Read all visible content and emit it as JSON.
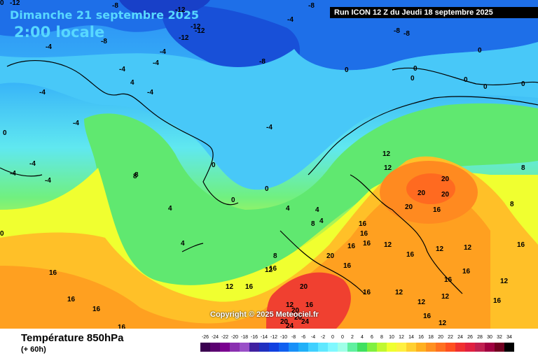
{
  "header": {
    "title": "Dimanche 21 septembre 2025",
    "subtitle": "2:00 locale",
    "run_info": "Run ICON 12 Z du Jeudi 18 septembre 2025"
  },
  "copyright": "Copyright © 2025 Meteociel.fr",
  "footer": {
    "variable_name": "Température 850hPa",
    "lead_time": "(+ 60h)"
  },
  "legend": {
    "ticks": [
      "-26",
      "-24",
      "-22",
      "-20",
      "-18",
      "-16",
      "-14",
      "-12",
      "-10",
      "-8",
      "-6",
      "-4",
      "-2",
      "0",
      "0",
      "2",
      "4",
      "6",
      "8",
      "10",
      "12",
      "14",
      "16",
      "18",
      "20",
      "22",
      "24",
      "26",
      "28",
      "30",
      "32",
      "34"
    ],
    "colors": [
      "#3a0050",
      "#5a0070",
      "#7a0090",
      "#8a30b0",
      "#9a50c8",
      "#4020a0",
      "#2030c0",
      "#1040e0",
      "#1060f0",
      "#1890f8",
      "#20b0f8",
      "#40d0ff",
      "#60e8ff",
      "#80f8ff",
      "#a0ffe8",
      "#60f0a0",
      "#40e060",
      "#80f040",
      "#c0f830",
      "#f0ff30",
      "#fff040",
      "#ffd030",
      "#ffb020",
      "#ff9020",
      "#ff7020",
      "#ff5020",
      "#f03030",
      "#e02040",
      "#c02050",
      "#a00040",
      "#700020",
      "#000000"
    ]
  },
  "isotherm_labels": [
    {
      "text": "-12"
    },
    {
      "text": "-12"
    },
    {
      "text": "-8"
    },
    {
      "text": "-8"
    },
    {
      "text": "-12"
    },
    {
      "text": "-12"
    },
    {
      "text": "-12"
    },
    {
      "text": "-4"
    },
    {
      "text": "-8"
    },
    {
      "text": "-8"
    },
    {
      "text": "-8"
    },
    {
      "text": "-8"
    },
    {
      "text": "-4"
    },
    {
      "text": "-4"
    },
    {
      "text": "-4"
    },
    {
      "text": "-4"
    },
    {
      "text": "-4"
    },
    {
      "text": "-4"
    },
    {
      "text": "-4"
    },
    {
      "text": "0"
    },
    {
      "text": "0"
    },
    {
      "text": "-4"
    },
    {
      "text": "4"
    },
    {
      "text": "0"
    },
    {
      "text": "0"
    },
    {
      "text": "0"
    },
    {
      "text": "0"
    },
    {
      "text": "0"
    },
    {
      "text": "0"
    },
    {
      "text": "-4"
    },
    {
      "text": "0"
    },
    {
      "text": "-4"
    },
    {
      "text": "-4"
    },
    {
      "text": "8"
    },
    {
      "text": "4"
    },
    {
      "text": "4"
    },
    {
      "text": "0"
    },
    {
      "text": "0"
    },
    {
      "text": "0"
    },
    {
      "text": "4"
    },
    {
      "text": "4"
    },
    {
      "text": "4"
    },
    {
      "text": "8"
    },
    {
      "text": "8"
    },
    {
      "text": "12"
    },
    {
      "text": "12"
    },
    {
      "text": "16"
    },
    {
      "text": "20"
    },
    {
      "text": "20"
    },
    {
      "text": "20"
    },
    {
      "text": "20"
    },
    {
      "text": "16"
    },
    {
      "text": "16"
    },
    {
      "text": "16"
    },
    {
      "text": "16"
    },
    {
      "text": "16"
    },
    {
      "text": "12"
    },
    {
      "text": "8"
    },
    {
      "text": "8"
    },
    {
      "text": "12"
    },
    {
      "text": "16"
    },
    {
      "text": "20"
    },
    {
      "text": "16"
    },
    {
      "text": "16"
    },
    {
      "text": "12"
    },
    {
      "text": "12"
    },
    {
      "text": "16"
    },
    {
      "text": "16"
    },
    {
      "text": "16"
    },
    {
      "text": "16"
    },
    {
      "text": "12"
    },
    {
      "text": "12"
    },
    {
      "text": "20"
    },
    {
      "text": "12"
    },
    {
      "text": "16"
    },
    {
      "text": "12"
    },
    {
      "text": "12"
    },
    {
      "text": "16"
    },
    {
      "text": "20"
    },
    {
      "text": "20"
    },
    {
      "text": "16"
    },
    {
      "text": "16"
    },
    {
      "text": "16"
    },
    {
      "text": "16"
    },
    {
      "text": "24"
    },
    {
      "text": "20"
    },
    {
      "text": "24"
    },
    {
      "text": "12"
    },
    {
      "text": "12"
    },
    {
      "text": "8"
    },
    {
      "text": "16"
    },
    {
      "text": "0"
    }
  ]
}
